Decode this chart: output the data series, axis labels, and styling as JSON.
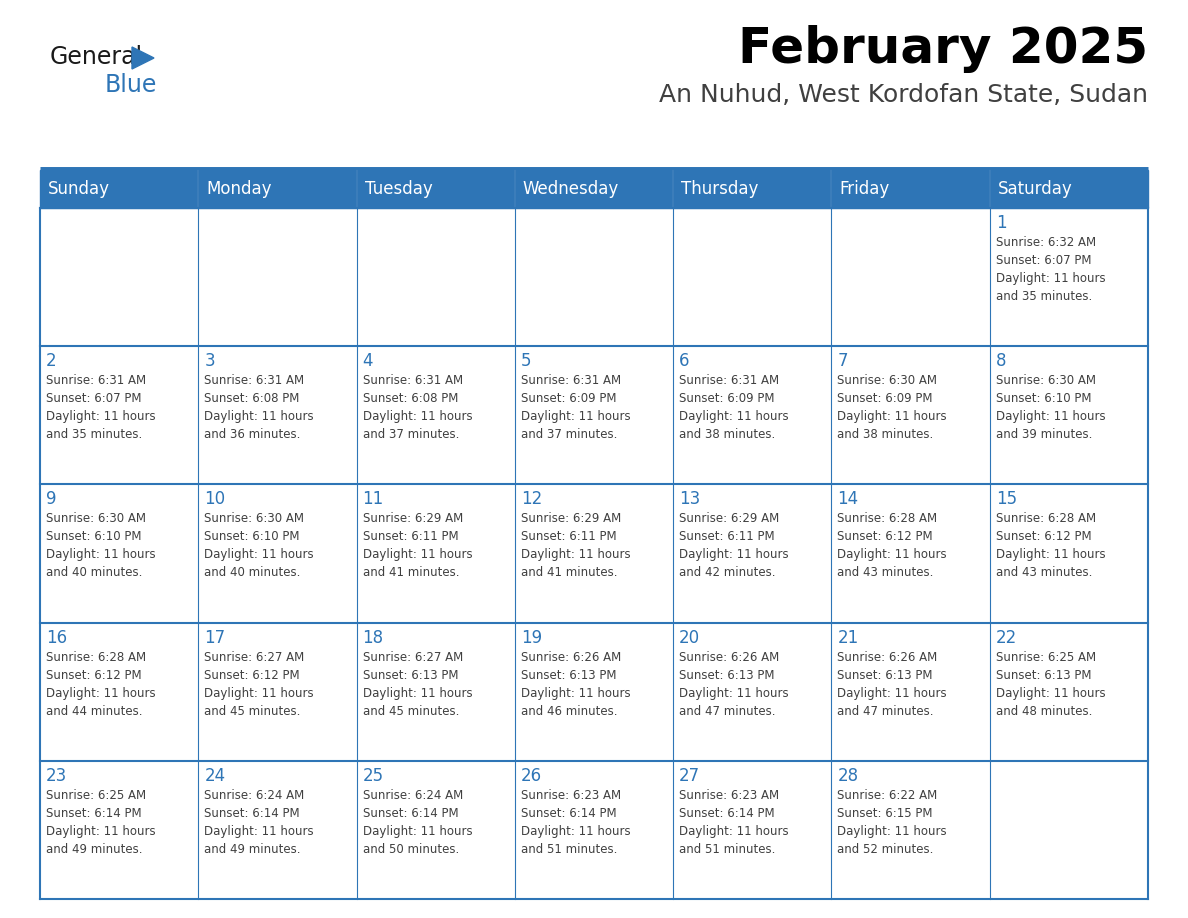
{
  "title": "February 2025",
  "subtitle": "An Nuhud, West Kordofan State, Sudan",
  "days_of_week": [
    "Sunday",
    "Monday",
    "Tuesday",
    "Wednesday",
    "Thursday",
    "Friday",
    "Saturday"
  ],
  "header_bg": "#2E75B6",
  "header_text": "#FFFFFF",
  "title_color": "#000000",
  "subtitle_color": "#404040",
  "cell_border_color": "#2E75B6",
  "day_number_color": "#2E75B6",
  "cell_text_color": "#404040",
  "background_color": "#FFFFFF",
  "row1_bg": "#E8E8E8",
  "logo_general_color": "#1a1a1a",
  "logo_blue_color": "#2E75B6",
  "calendar_data": [
    [
      null,
      null,
      null,
      null,
      null,
      null,
      {
        "day": 1,
        "sunrise": "6:32 AM",
        "sunset": "6:07 PM",
        "daylight": "11 hours and 35 minutes."
      }
    ],
    [
      {
        "day": 2,
        "sunrise": "6:31 AM",
        "sunset": "6:07 PM",
        "daylight": "11 hours and 35 minutes."
      },
      {
        "day": 3,
        "sunrise": "6:31 AM",
        "sunset": "6:08 PM",
        "daylight": "11 hours and 36 minutes."
      },
      {
        "day": 4,
        "sunrise": "6:31 AM",
        "sunset": "6:08 PM",
        "daylight": "11 hours and 37 minutes."
      },
      {
        "day": 5,
        "sunrise": "6:31 AM",
        "sunset": "6:09 PM",
        "daylight": "11 hours and 37 minutes."
      },
      {
        "day": 6,
        "sunrise": "6:31 AM",
        "sunset": "6:09 PM",
        "daylight": "11 hours and 38 minutes."
      },
      {
        "day": 7,
        "sunrise": "6:30 AM",
        "sunset": "6:09 PM",
        "daylight": "11 hours and 38 minutes."
      },
      {
        "day": 8,
        "sunrise": "6:30 AM",
        "sunset": "6:10 PM",
        "daylight": "11 hours and 39 minutes."
      }
    ],
    [
      {
        "day": 9,
        "sunrise": "6:30 AM",
        "sunset": "6:10 PM",
        "daylight": "11 hours and 40 minutes."
      },
      {
        "day": 10,
        "sunrise": "6:30 AM",
        "sunset": "6:10 PM",
        "daylight": "11 hours and 40 minutes."
      },
      {
        "day": 11,
        "sunrise": "6:29 AM",
        "sunset": "6:11 PM",
        "daylight": "11 hours and 41 minutes."
      },
      {
        "day": 12,
        "sunrise": "6:29 AM",
        "sunset": "6:11 PM",
        "daylight": "11 hours and 41 minutes."
      },
      {
        "day": 13,
        "sunrise": "6:29 AM",
        "sunset": "6:11 PM",
        "daylight": "11 hours and 42 minutes."
      },
      {
        "day": 14,
        "sunrise": "6:28 AM",
        "sunset": "6:12 PM",
        "daylight": "11 hours and 43 minutes."
      },
      {
        "day": 15,
        "sunrise": "6:28 AM",
        "sunset": "6:12 PM",
        "daylight": "11 hours and 43 minutes."
      }
    ],
    [
      {
        "day": 16,
        "sunrise": "6:28 AM",
        "sunset": "6:12 PM",
        "daylight": "11 hours and 44 minutes."
      },
      {
        "day": 17,
        "sunrise": "6:27 AM",
        "sunset": "6:12 PM",
        "daylight": "11 hours and 45 minutes."
      },
      {
        "day": 18,
        "sunrise": "6:27 AM",
        "sunset": "6:13 PM",
        "daylight": "11 hours and 45 minutes."
      },
      {
        "day": 19,
        "sunrise": "6:26 AM",
        "sunset": "6:13 PM",
        "daylight": "11 hours and 46 minutes."
      },
      {
        "day": 20,
        "sunrise": "6:26 AM",
        "sunset": "6:13 PM",
        "daylight": "11 hours and 47 minutes."
      },
      {
        "day": 21,
        "sunrise": "6:26 AM",
        "sunset": "6:13 PM",
        "daylight": "11 hours and 47 minutes."
      },
      {
        "day": 22,
        "sunrise": "6:25 AM",
        "sunset": "6:13 PM",
        "daylight": "11 hours and 48 minutes."
      }
    ],
    [
      {
        "day": 23,
        "sunrise": "6:25 AM",
        "sunset": "6:14 PM",
        "daylight": "11 hours and 49 minutes."
      },
      {
        "day": 24,
        "sunrise": "6:24 AM",
        "sunset": "6:14 PM",
        "daylight": "11 hours and 49 minutes."
      },
      {
        "day": 25,
        "sunrise": "6:24 AM",
        "sunset": "6:14 PM",
        "daylight": "11 hours and 50 minutes."
      },
      {
        "day": 26,
        "sunrise": "6:23 AM",
        "sunset": "6:14 PM",
        "daylight": "11 hours and 51 minutes."
      },
      {
        "day": 27,
        "sunrise": "6:23 AM",
        "sunset": "6:14 PM",
        "daylight": "11 hours and 51 minutes."
      },
      {
        "day": 28,
        "sunrise": "6:22 AM",
        "sunset": "6:15 PM",
        "daylight": "11 hours and 52 minutes."
      },
      null
    ]
  ]
}
